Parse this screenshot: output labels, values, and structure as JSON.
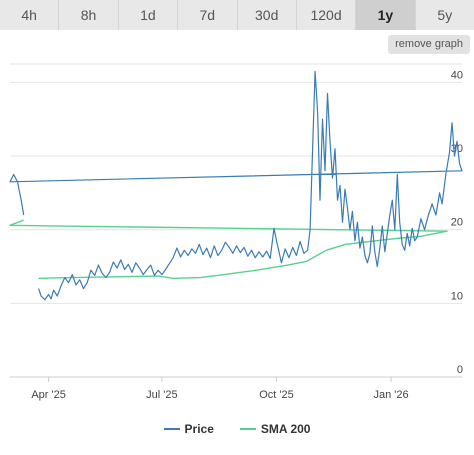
{
  "range_tabs": [
    {
      "label": "4h",
      "active": false
    },
    {
      "label": "8h",
      "active": false
    },
    {
      "label": "1d",
      "active": false
    },
    {
      "label": "7d",
      "active": false
    },
    {
      "label": "30d",
      "active": false
    },
    {
      "label": "120d",
      "active": false
    },
    {
      "label": "1y",
      "active": true
    },
    {
      "label": "5y",
      "active": false
    }
  ],
  "remove_graph_label": "remove graph",
  "legend": {
    "price_label": "Price",
    "sma_label": "SMA 200"
  },
  "colors": {
    "price": "#3a7bb5",
    "sma": "#5ad090",
    "grid": "#e4e4e4",
    "text": "#444444"
  },
  "chart_data": {
    "type": "line",
    "x_ticks": [
      "Apr '25",
      "Jul '25",
      "Oct '25",
      "Jan '26"
    ],
    "y_ticks": [
      0,
      10,
      20,
      30,
      40
    ],
    "ylim": [
      0,
      42.5
    ],
    "grid": "horizontal",
    "legend_position": "bottom",
    "series": [
      {
        "name": "Price",
        "color": "#3a7bb5",
        "points": [
          [
            "Mar 24",
            12
          ],
          [
            "Mar 26",
            11
          ],
          [
            "Mar 29",
            10.5
          ],
          [
            "Apr 1",
            11.2
          ],
          [
            "Apr 3",
            10.6
          ],
          [
            "Apr 5",
            11.8
          ],
          [
            "Apr 8",
            11
          ],
          [
            "Apr 11",
            12.4
          ],
          [
            "Apr 14",
            13.5
          ],
          [
            "Apr 17",
            12.8
          ],
          [
            "Apr 20",
            13.9
          ],
          [
            "Apr 23",
            12.5
          ],
          [
            "Apr 26",
            13.2
          ],
          [
            "Apr 29",
            12
          ],
          [
            "May 2",
            12.8
          ],
          [
            "May 5",
            14.5
          ],
          [
            "May 8",
            13.8
          ],
          [
            "May 11",
            15.2
          ],
          [
            "May 14",
            14.1
          ],
          [
            "May 17",
            13.5
          ],
          [
            "May 20",
            14.2
          ],
          [
            "May 23",
            15.6
          ],
          [
            "May 26",
            14.8
          ],
          [
            "May 29",
            15.9
          ],
          [
            "Jun 1",
            14.6
          ],
          [
            "Jun 4",
            15.3
          ],
          [
            "Jun 7",
            14.2
          ],
          [
            "Jun 10",
            15.5
          ],
          [
            "Jun 13",
            14.8
          ],
          [
            "Jun 16",
            13.9
          ],
          [
            "Jun 19",
            14.6
          ],
          [
            "Jun 22",
            15.2
          ],
          [
            "Jun 25",
            13.8
          ],
          [
            "Jun 28",
            14.5
          ],
          [
            "Jul 1",
            13.9
          ],
          [
            "Jul 4",
            14.6
          ],
          [
            "Jul 7",
            15.4
          ],
          [
            "Jul 10",
            16.2
          ],
          [
            "Jul 13",
            17.5
          ],
          [
            "Jul 16",
            16.3
          ],
          [
            "Jul 19",
            17.2
          ],
          [
            "Jul 22",
            16.5
          ],
          [
            "Jul 25",
            17.4
          ],
          [
            "Jul 28",
            16.8
          ],
          [
            "Jul 31",
            18
          ],
          [
            "Aug 3",
            16.6
          ],
          [
            "Aug 6",
            17.5
          ],
          [
            "Aug 9",
            16.2
          ],
          [
            "Aug 12",
            17.8
          ],
          [
            "Aug 15",
            16.5
          ],
          [
            "Aug 18",
            17.2
          ],
          [
            "Aug 21",
            18.3
          ],
          [
            "Aug 24",
            17.6
          ],
          [
            "Aug 27",
            16.8
          ],
          [
            "Aug 30",
            17.8
          ],
          [
            "Sep 2",
            16.9
          ],
          [
            "Sep 5",
            17.6
          ],
          [
            "Sep 8",
            16.4
          ],
          [
            "Sep 11",
            17.2
          ],
          [
            "Sep 14",
            16.2
          ],
          [
            "Sep 17",
            17
          ],
          [
            "Sep 20",
            16.3
          ],
          [
            "Sep 23",
            17.1
          ],
          [
            "Sep 26",
            16.1
          ],
          [
            "Sep 29",
            20.2
          ],
          [
            "Oct 1",
            18.5
          ],
          [
            "Oct 3",
            17
          ],
          [
            "Oct 5",
            15.5
          ],
          [
            "Oct 8",
            17.4
          ],
          [
            "Oct 11",
            16.2
          ],
          [
            "Oct 14",
            17.6
          ],
          [
            "Oct 17",
            16.5
          ],
          [
            "Oct 20",
            18.4
          ],
          [
            "Oct 23",
            16.8
          ],
          [
            "Oct 26",
            17.2
          ],
          [
            "Oct 28",
            20
          ],
          [
            "Oct 30",
            31
          ],
          [
            "Nov 1",
            41.5
          ],
          [
            "Nov 3",
            36
          ],
          [
            "Nov 5",
            24
          ],
          [
            "Nov 7",
            35
          ],
          [
            "Nov 9",
            28
          ],
          [
            "Nov 11",
            38.5
          ],
          [
            "Nov 13",
            32
          ],
          [
            "Nov 15",
            27
          ],
          [
            "Nov 17",
            31
          ],
          [
            "Nov 19",
            24
          ],
          [
            "Nov 21",
            26
          ],
          [
            "Nov 23",
            21
          ],
          [
            "Nov 25",
            25.5
          ],
          [
            "Nov 27",
            23
          ],
          [
            "Nov 29",
            20
          ],
          [
            "Dec 1",
            22.5
          ],
          [
            "Dec 3",
            18.5
          ],
          [
            "Dec 5",
            21
          ],
          [
            "Dec 7",
            17.5
          ],
          [
            "Dec 9",
            19
          ],
          [
            "Dec 11",
            16.5
          ],
          [
            "Dec 13",
            15.5
          ],
          [
            "Dec 15",
            16.8
          ],
          [
            "Dec 17",
            20.5
          ],
          [
            "Dec 19",
            17
          ],
          [
            "Dec 21",
            15
          ],
          [
            "Dec 23",
            17.5
          ],
          [
            "Dec 25",
            20.5
          ],
          [
            "Dec 27",
            17
          ],
          [
            "Dec 29",
            19.5
          ],
          [
            "Dec 31",
            22
          ],
          [
            "Jan 2",
            24
          ],
          [
            "Jan 4",
            20
          ],
          [
            "Jan 6",
            27.5
          ],
          [
            "Jan 8",
            21
          ],
          [
            "Jan 10",
            18
          ],
          [
            "Jan 12",
            17.2
          ],
          [
            "Jan 14",
            19.5
          ],
          [
            "Jan 16",
            17.8
          ],
          [
            "Jan 18",
            20.2
          ],
          [
            "Jan 20",
            18.5
          ],
          [
            "Jan 22",
            19
          ],
          [
            "Jan 25",
            21.5
          ],
          [
            "Jan 28",
            20
          ],
          [
            "Jan 31",
            22
          ],
          [
            "Feb 3",
            23.5
          ],
          [
            "Feb 6",
            22
          ],
          [
            "Feb 9",
            25
          ],
          [
            "Feb 11",
            23.5
          ],
          [
            "Feb 14",
            27.5
          ],
          [
            "Feb 17",
            30.5
          ],
          [
            "Feb 19",
            34.5
          ],
          [
            "Feb 21",
            30
          ],
          [
            "Feb 23",
            32
          ],
          [
            "Feb 25",
            29
          ],
          [
            "Feb 27",
            28
          ],
          [
            "Mar 1",
            26.5
          ],
          [
            "Mar 4",
            27.5
          ],
          [
            "Mar 7",
            26.5
          ],
          [
            "Mar 10",
            24
          ],
          [
            "Mar 12",
            22
          ]
        ]
      },
      {
        "name": "SMA 200",
        "color": "#5ad090",
        "points": [
          [
            "Mar 24",
            13.4
          ],
          [
            "Apr 20",
            13.5
          ],
          [
            "May 25",
            13.6
          ],
          [
            "Jun 28",
            13.7
          ],
          [
            "Jul 10",
            13.4
          ],
          [
            "Aug 1",
            13.5
          ],
          [
            "Aug 20",
            13.9
          ],
          [
            "Sep 15",
            14.5
          ],
          [
            "Oct 10",
            15.2
          ],
          [
            "Oct 25",
            15.7
          ],
          [
            "Nov 10",
            17.2
          ],
          [
            "Nov 25",
            18
          ],
          [
            "Dec 15",
            18.4
          ],
          [
            "Jan 5",
            18.8
          ],
          [
            "Jan 25",
            19.1
          ],
          [
            "Feb 15",
            19.8
          ],
          [
            "Mar 1",
            20.6
          ],
          [
            "Mar 12",
            21.3
          ]
        ]
      }
    ]
  }
}
